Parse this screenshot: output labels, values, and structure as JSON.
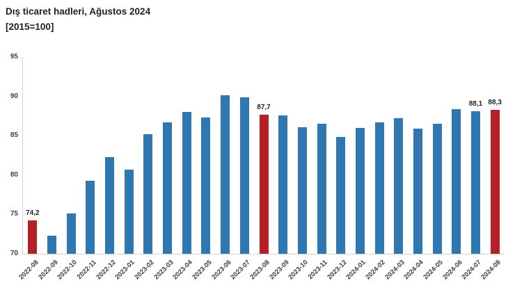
{
  "title": {
    "line1": "Dış ticaret hadleri, Ağustos 2024",
    "line2": "[2015=100]"
  },
  "chart_data": {
    "type": "bar",
    "title": "Dış ticaret hadleri, Ağustos 2024 [2015=100]",
    "xlabel": "",
    "ylabel": "",
    "categories": [
      "2022-08",
      "2022-09",
      "2022-10",
      "2022-11",
      "2022-12",
      "2023-01",
      "2023-02",
      "2023-03",
      "2023-04",
      "2023-05",
      "2023-06",
      "2023-07",
      "2023-08",
      "2023-09",
      "2023-10",
      "2023-11",
      "2023-12",
      "2024-01",
      "2024-02",
      "2024-03",
      "2024-04",
      "2024-05",
      "2024-06",
      "2024-07",
      "2024-08"
    ],
    "values": [
      74.2,
      72.3,
      75.1,
      79.3,
      82.3,
      80.7,
      85.2,
      86.7,
      88.0,
      87.3,
      90.1,
      89.9,
      87.7,
      87.6,
      86.1,
      86.5,
      84.8,
      86.0,
      86.7,
      87.2,
      85.9,
      86.5,
      88.4,
      88.1,
      88.3
    ],
    "highlighted": [
      "2022-08",
      "2023-08",
      "2024-08"
    ],
    "data_labels": {
      "2022-08": "74,2",
      "2023-08": "87,7",
      "2024-07": "88,1",
      "2024-08": "88,3"
    },
    "ylim": [
      70,
      95
    ],
    "yticks": [
      70,
      75,
      80,
      85,
      90,
      95
    ],
    "grid": false,
    "legend": false,
    "colors": {
      "bar": "#2F77B0",
      "highlight": "#B52025",
      "axis_line": "#d2d2d2",
      "tick_text": "#3f3f3f",
      "label_text": "#222222"
    }
  }
}
